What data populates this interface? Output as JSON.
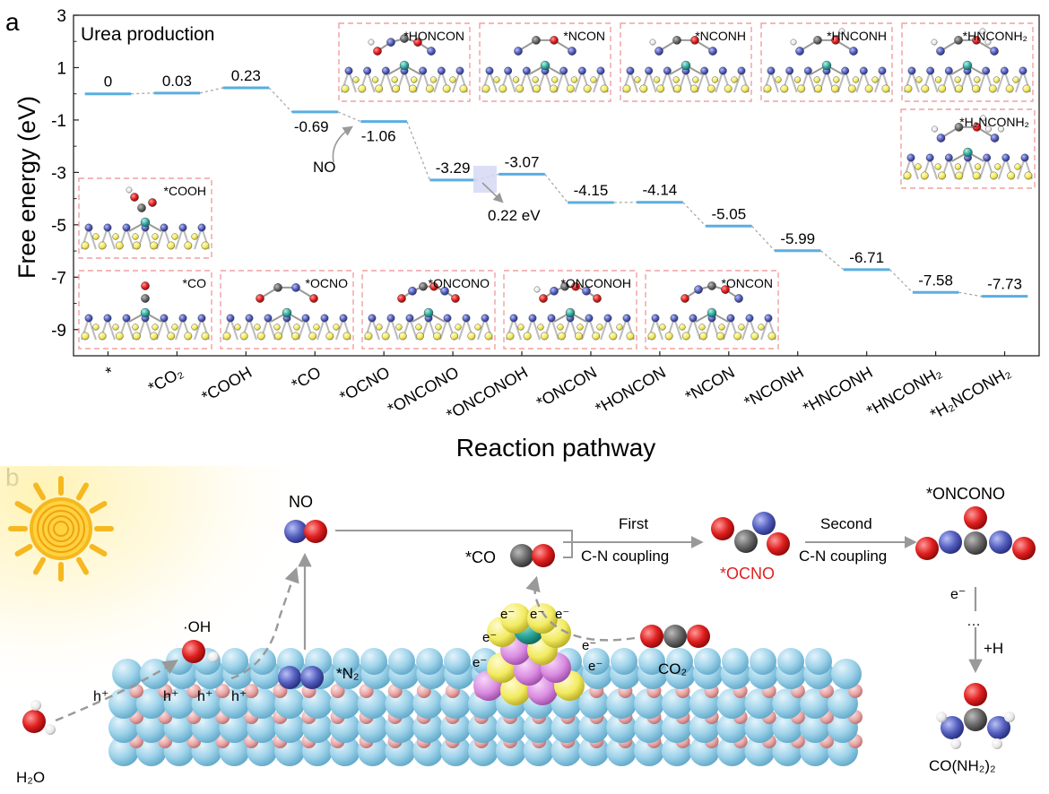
{
  "panel_a": {
    "label": "a",
    "inset_title": "Urea production",
    "ylabel": "Free energy (eV)",
    "xlabel": "Reaction pathway",
    "yticks": [
      3,
      1,
      -1,
      -3,
      -5,
      -7,
      -9
    ],
    "ylim": [
      -10,
      3
    ],
    "categories": [
      "*",
      "*CO₂",
      "*COOH",
      "*CO",
      "*OCNO",
      "*ONCONO",
      "*ONCONOH",
      "*ONCON",
      "*HONCON",
      "*NCON",
      "*NCONH",
      "*HNCONH",
      "*HNCONH₂",
      "*H₂NCONH₂"
    ],
    "energies": [
      0,
      0.03,
      0.23,
      -0.69,
      -1.06,
      -3.29,
      -3.07,
      -4.15,
      -4.14,
      -5.05,
      -5.99,
      -6.71,
      -7.58,
      -7.73
    ],
    "energy_labels": [
      "0",
      "0.03",
      "0.23",
      "-0.69",
      "-1.06",
      "-3.29",
      "-3.07",
      "-4.15",
      "-4.14",
      "-5.05",
      "-5.99",
      "-6.71",
      "-7.58",
      "-7.73"
    ],
    "annotations": {
      "no": "NO",
      "barrier": "0.22 eV"
    },
    "insets_bottom": [
      "*CO",
      "*OCNO",
      "*ONCONO",
      "*ONCONOH",
      "*ONCON"
    ],
    "inset_cooh": "*COOH",
    "insets_top": [
      "*HONCON",
      "*NCON",
      "*NCONH",
      "*HNCONH",
      "*HNCONH₂"
    ],
    "inset_right": "*H₂NCONH₂",
    "colors": {
      "level": "#5aaee0",
      "frame": "#f2a0a0",
      "O": "#e02020",
      "N": "#5560c0",
      "C": "#707070",
      "H": "#f2f2f2",
      "S": "#f0e040",
      "metal": "#2ba59a"
    }
  },
  "panel_b": {
    "label": "b",
    "labels": {
      "no": "NO",
      "co": "*CO",
      "first": "First",
      "cn1": "C-N coupling",
      "ocno": "*OCNO",
      "second": "Second",
      "cn2": "C-N coupling",
      "oncono": "*ONCONO",
      "oh": "·OH",
      "n2": "*N₂",
      "co2": "CO₂",
      "h2o": "H₂O",
      "hplus": "h⁺",
      "electron": "e⁻",
      "dots": "…",
      "plus_h": "+H",
      "urea": "CO(NH₂)₂"
    },
    "colors": {
      "ocno_label": "#e02020",
      "support_top": "#9fd3ea",
      "support_pink": "#e7a5a5",
      "cluster_yellow": "#f2eb60",
      "cluster_pink": "#d98be0",
      "cluster_teal": "#2ba59a",
      "sun": "#f5b820"
    }
  }
}
